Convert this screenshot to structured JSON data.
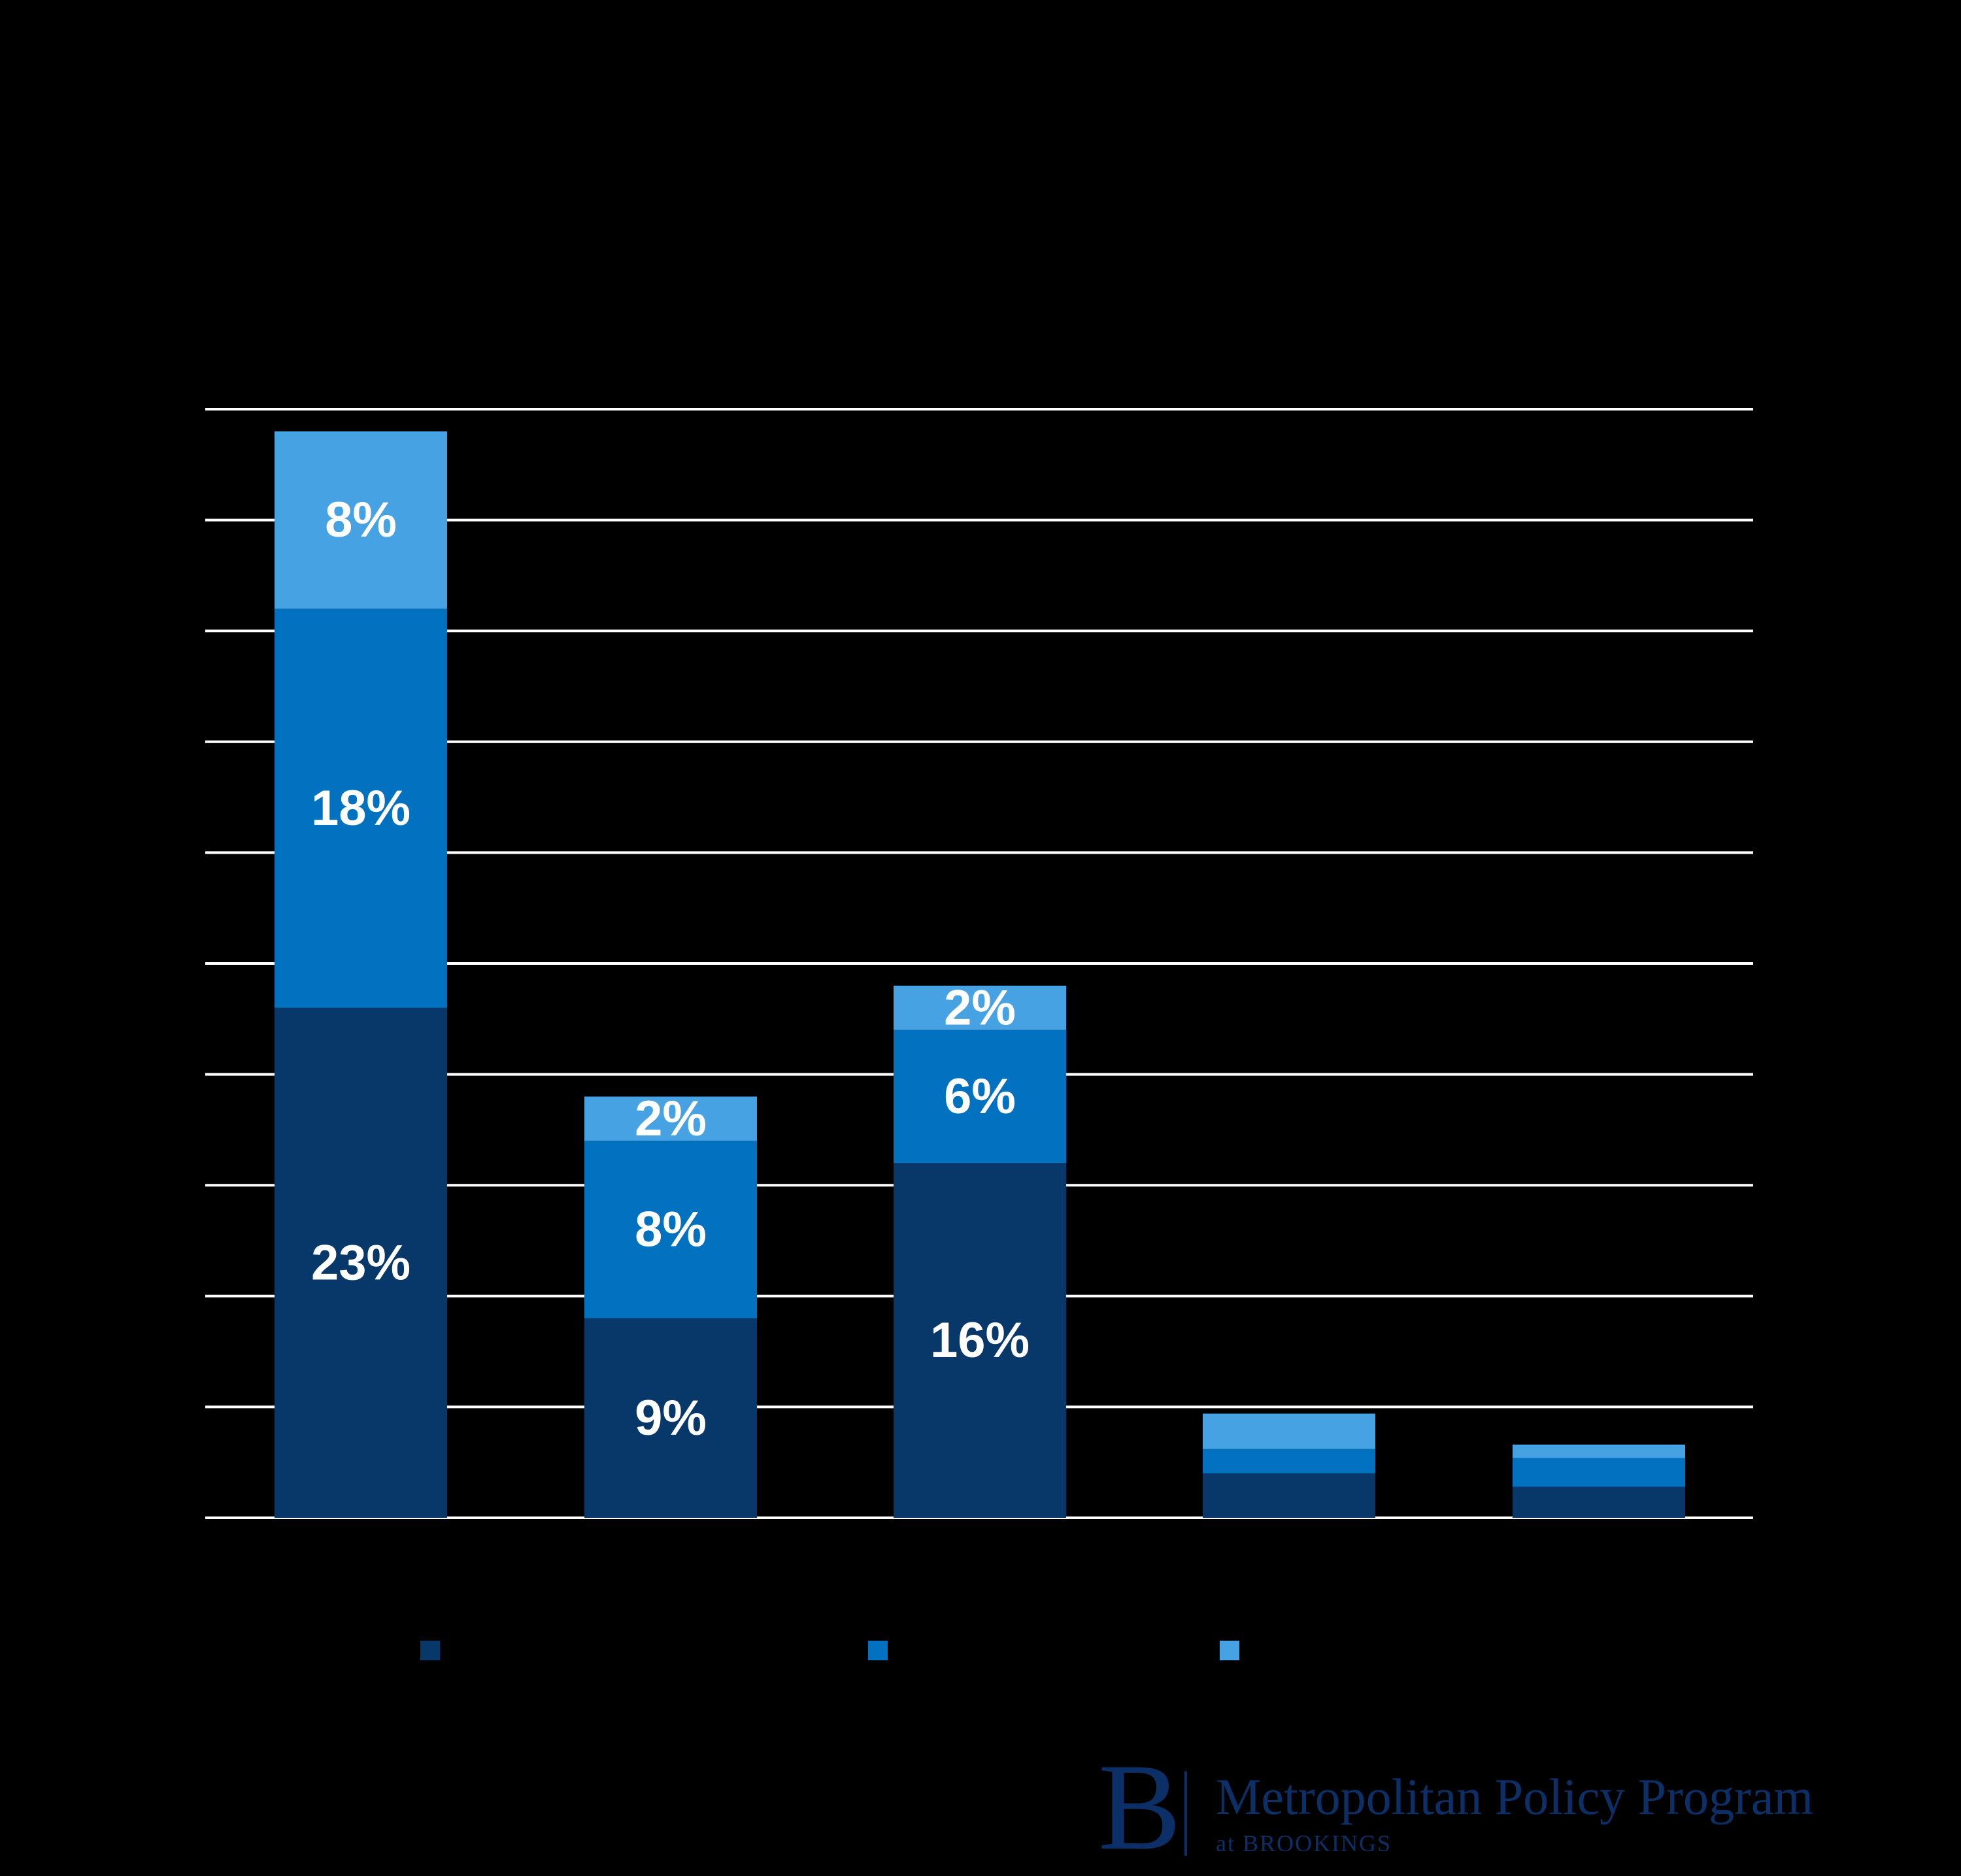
{
  "chart_data": {
    "type": "bar",
    "stacked": true,
    "categories": [
      "",
      "",
      "",
      "",
      ""
    ],
    "series": [
      {
        "values": [
          23,
          9,
          16,
          2,
          1.4
        ],
        "color": "#08386a",
        "labels": [
          "23%",
          "9%",
          "16%",
          "",
          ""
        ]
      },
      {
        "values": [
          18,
          8,
          6,
          1.1,
          1.3
        ],
        "color": "#0271c0",
        "labels": [
          "18%",
          "8%",
          "6%",
          "",
          ""
        ]
      },
      {
        "values": [
          8,
          2,
          2,
          1.6,
          0.6
        ],
        "color": "#47a2e3",
        "labels": [
          "8%",
          "2%",
          "2%",
          "",
          ""
        ]
      }
    ],
    "ylim": [
      0,
      50
    ],
    "gridlines": [
      5,
      10,
      15,
      20,
      25,
      30,
      35,
      40,
      45,
      50
    ],
    "grid": true,
    "legend": "bottom",
    "grid_color": "#ffffff",
    "text_color": "#ffffff"
  },
  "logo": {
    "mark": "B",
    "name": "Metropolitan Policy Program",
    "sub": "at BROOKINGS",
    "color": "#0b2f66"
  }
}
